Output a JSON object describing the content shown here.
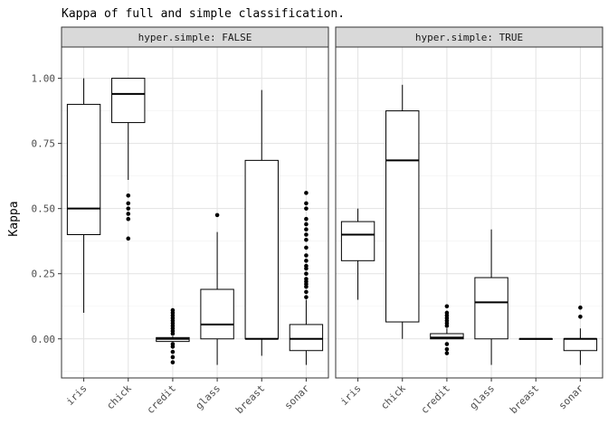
{
  "chart_data": {
    "type": "boxplot",
    "title": "Kappa of full and simple classification.",
    "ylabel": "Kappa",
    "xlabel": "",
    "ylim": [
      -0.15,
      1.12
    ],
    "yticks": [
      0.0,
      0.25,
      0.5,
      0.75,
      1.0
    ],
    "ytick_labels": [
      "0.00",
      "0.25",
      "0.50",
      "0.75",
      "1.00"
    ],
    "categories": [
      "iris",
      "chick",
      "credit",
      "glass",
      "breast",
      "sonar"
    ],
    "grid": true,
    "facet_var": "hyper.simple",
    "panels": [
      {
        "strip": "hyper.simple: FALSE",
        "boxes": [
          {
            "category": "iris",
            "min": 0.1,
            "q1": 0.4,
            "median": 0.5,
            "q3": 0.9,
            "max": 1.0,
            "outliers": []
          },
          {
            "category": "chick",
            "min": 0.61,
            "q1": 0.83,
            "median": 0.94,
            "q3": 1.0,
            "max": 1.0,
            "outliers": [
              0.55,
              0.52,
              0.5,
              0.48,
              0.46,
              0.385
            ]
          },
          {
            "category": "credit",
            "min": -0.01,
            "q1": -0.01,
            "median": 0.0,
            "q3": 0.005,
            "max": 0.01,
            "outliers": [
              0.11,
              0.1,
              0.09,
              0.08,
              0.07,
              0.06,
              0.05,
              0.04,
              0.03,
              0.02,
              -0.02,
              -0.03,
              -0.05,
              -0.07,
              -0.09
            ]
          },
          {
            "category": "glass",
            "min": -0.1,
            "q1": 0.0,
            "median": 0.055,
            "q3": 0.19,
            "max": 0.41,
            "outliers": [
              0.475
            ]
          },
          {
            "category": "breast",
            "min": -0.065,
            "q1": 0.0,
            "median": 0.0,
            "q3": 0.685,
            "max": 0.955,
            "outliers": []
          },
          {
            "category": "sonar",
            "min": -0.1,
            "q1": -0.045,
            "median": 0.0,
            "q3": 0.055,
            "max": 0.15,
            "outliers": [
              0.16,
              0.18,
              0.2,
              0.21,
              0.22,
              0.23,
              0.25,
              0.27,
              0.28,
              0.3,
              0.32,
              0.35,
              0.38,
              0.4,
              0.42,
              0.44,
              0.46,
              0.5,
              0.52,
              0.56
            ]
          }
        ]
      },
      {
        "strip": "hyper.simple: TRUE",
        "boxes": [
          {
            "category": "iris",
            "min": 0.15,
            "q1": 0.3,
            "median": 0.4,
            "q3": 0.45,
            "max": 0.5,
            "outliers": []
          },
          {
            "category": "chick",
            "min": 0.0,
            "q1": 0.065,
            "median": 0.685,
            "q3": 0.875,
            "max": 0.975,
            "outliers": []
          },
          {
            "category": "credit",
            "min": 0.0,
            "q1": 0.0,
            "median": 0.005,
            "q3": 0.02,
            "max": 0.04,
            "outliers": [
              0.125,
              0.1,
              0.09,
              0.08,
              0.07,
              0.06,
              0.05,
              -0.02,
              -0.04,
              -0.055
            ]
          },
          {
            "category": "glass",
            "min": -0.1,
            "q1": 0.0,
            "median": 0.14,
            "q3": 0.235,
            "max": 0.42,
            "outliers": []
          },
          {
            "category": "breast",
            "min": 0.0,
            "q1": 0.0,
            "median": 0.0,
            "q3": 0.0,
            "max": 0.0,
            "outliers": []
          },
          {
            "category": "sonar",
            "min": -0.1,
            "q1": -0.045,
            "median": 0.0,
            "q3": 0.0,
            "max": 0.04,
            "outliers": [
              0.085,
              0.12
            ]
          }
        ]
      }
    ]
  }
}
